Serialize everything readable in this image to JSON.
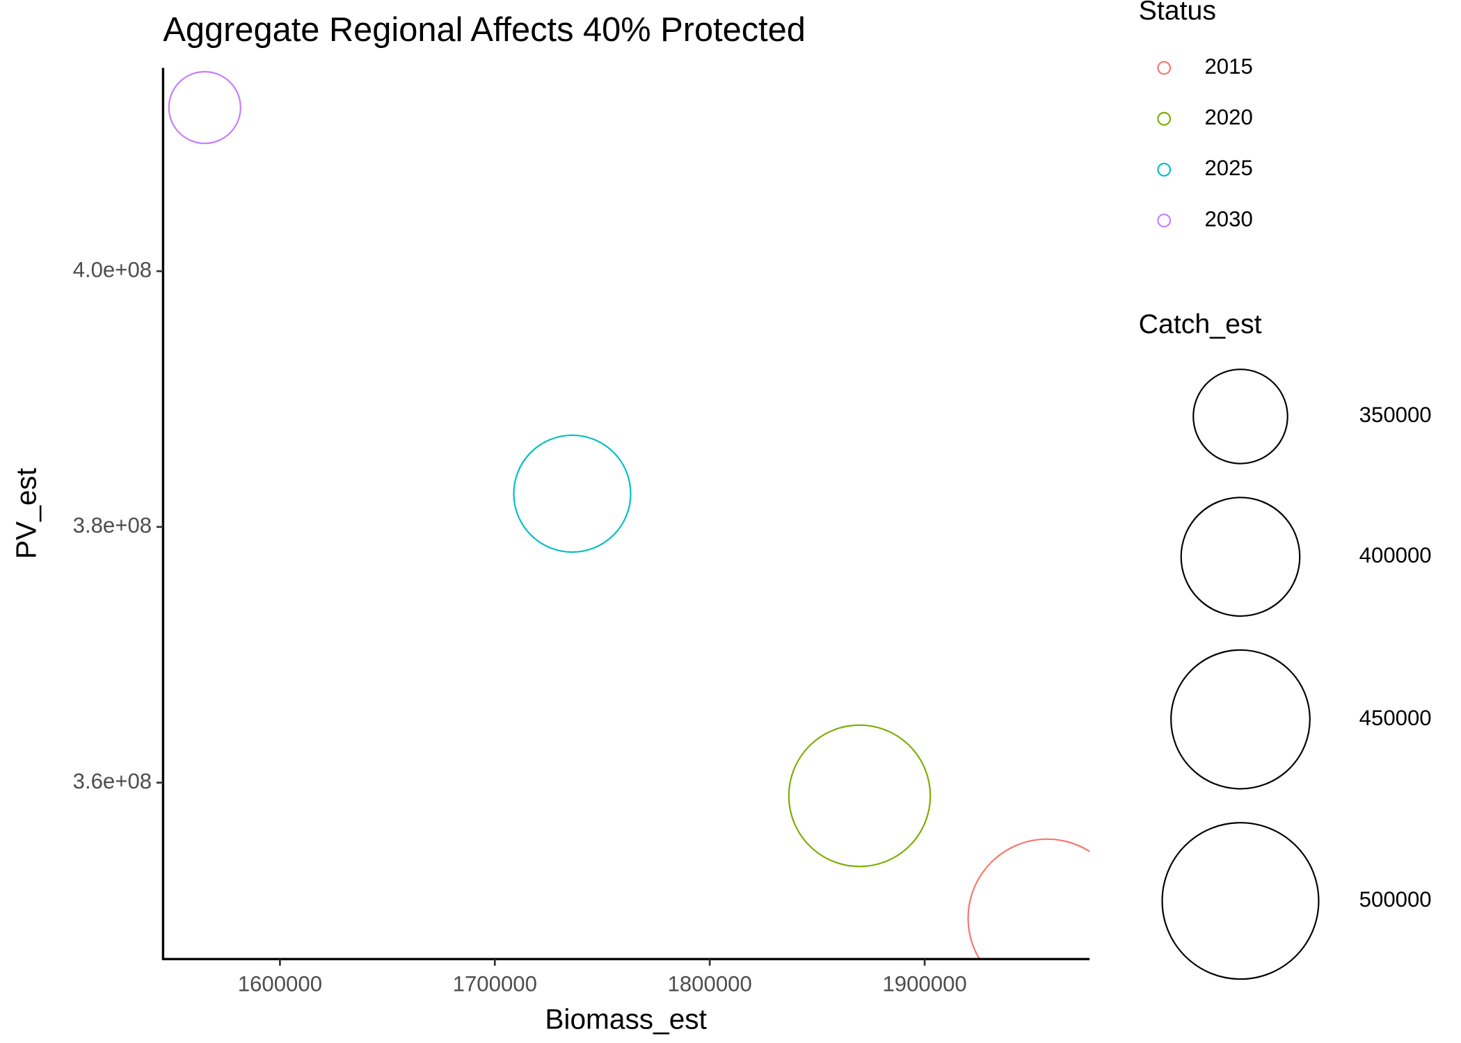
{
  "chart_data": {
    "type": "scatter",
    "title": "Aggregate Regional Affects 40% Protected",
    "x_label": "Biomass_est",
    "y_label": "PV_est",
    "color_legend_title": "Status",
    "size_legend_title": "Catch_est",
    "series": [
      {
        "name": "2015",
        "color": "#F8766D",
        "x": [
          1957000
        ],
        "y": [
          349400000
        ],
        "size": [
          505000
        ]
      },
      {
        "name": "2020",
        "color": "#7CAE00",
        "x": [
          1869700
        ],
        "y": [
          358970000
        ],
        "size": [
          457000
        ]
      },
      {
        "name": "2025",
        "color": "#00BFC4",
        "x": [
          1736000
        ],
        "y": [
          382600000
        ],
        "size": [
          396000
        ]
      },
      {
        "name": "2030",
        "color": "#C77CFF",
        "x": [
          1565000
        ],
        "y": [
          412800000
        ],
        "size": [
          314000
        ]
      }
    ],
    "size_breaks": [
      350000,
      400000,
      450000,
      500000
    ],
    "xlim": [
      1545614,
      1976754
    ],
    "xticks": [
      1600000,
      1700000,
      1800000,
      1900000
    ],
    "ylim": [
      346200000,
      415900000
    ],
    "yticks": [
      {
        "value": 360000000,
        "label": "3.6e+08"
      },
      {
        "value": 380000000,
        "label": "3.8e+08"
      },
      {
        "value": 400000000,
        "label": "4.0e+08"
      }
    ],
    "grid": false
  }
}
